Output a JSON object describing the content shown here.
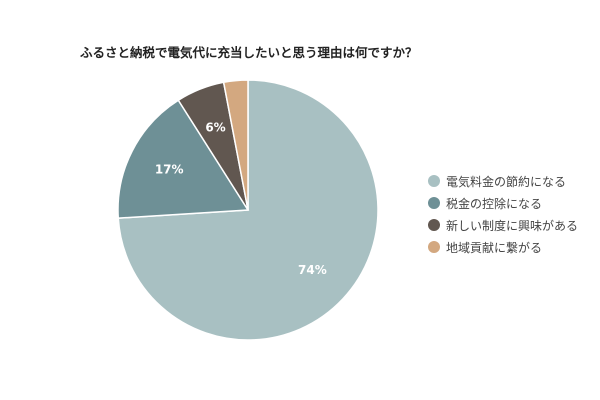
{
  "chart_data": {
    "type": "pie",
    "title": "ふるさと納税で電気代に充当したいと思う理由は何ですか？",
    "categories": [
      "電気料金の節約になる",
      "税金の控除になる",
      "新しい制度に興味がある",
      "地域貢献に繋がる"
    ],
    "values": [
      74,
      17,
      6,
      3
    ],
    "data_labels": [
      "74%",
      "17%",
      "6%",
      ""
    ],
    "colors": [
      "#a8c0c2",
      "#6e9096",
      "#615750",
      "#d3a880"
    ],
    "legend_position": "right"
  }
}
